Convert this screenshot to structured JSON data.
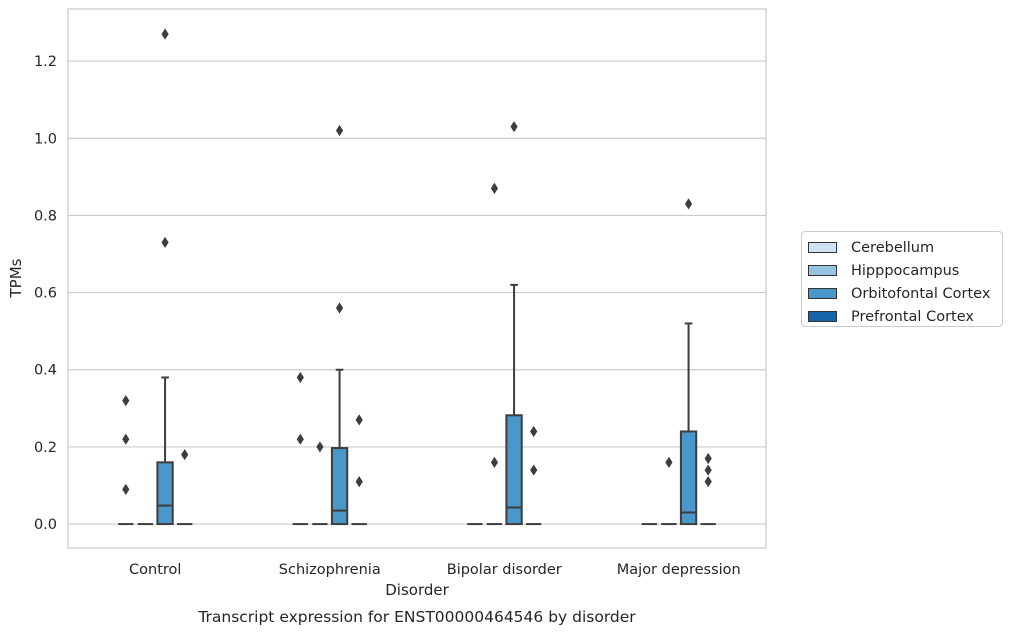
{
  "chart_data": {
    "type": "box",
    "xlabel": "Disorder",
    "ylabel": "TPMs",
    "caption": "Transcript expression for ENST00000464546 by disorder",
    "categories": [
      "Control",
      "Schizophrenia",
      "Bipolar disorder",
      "Major depression"
    ],
    "yticks": [
      "0.0",
      "0.2",
      "0.4",
      "0.6",
      "0.8",
      "1.0",
      "1.2"
    ],
    "ylim": [
      -0.062,
      1.335
    ],
    "grid": true,
    "legend_position": "right",
    "series": [
      {
        "name": "Cerebellum",
        "color": "#d0e1f2",
        "boxes": [
          {
            "q1": 0,
            "median": 0,
            "q3": 0,
            "whislo": 0,
            "whishi": 0,
            "fliers": [
              0.09,
              0.22,
              0.32
            ]
          },
          {
            "q1": 0,
            "median": 0,
            "q3": 0,
            "whislo": 0,
            "whishi": 0,
            "fliers": [
              0.22,
              0.38
            ]
          },
          {
            "q1": 0,
            "median": 0,
            "q3": 0,
            "whislo": 0,
            "whishi": 0,
            "fliers": []
          },
          {
            "q1": 0,
            "median": 0,
            "q3": 0,
            "whislo": 0,
            "whishi": 0,
            "fliers": []
          }
        ]
      },
      {
        "name": "Hipppocampus",
        "color": "#94c4df",
        "boxes": [
          {
            "q1": 0,
            "median": 0,
            "q3": 0,
            "whislo": 0,
            "whishi": 0,
            "fliers": []
          },
          {
            "q1": 0,
            "median": 0,
            "q3": 0,
            "whislo": 0,
            "whishi": 0,
            "fliers": [
              0.2
            ]
          },
          {
            "q1": 0,
            "median": 0,
            "q3": 0,
            "whislo": 0,
            "whishi": 0,
            "fliers": [
              0.16,
              0.87
            ]
          },
          {
            "q1": 0,
            "median": 0,
            "q3": 0,
            "whislo": 0,
            "whishi": 0,
            "fliers": [
              0.16
            ]
          }
        ]
      },
      {
        "name": "Orbitofontal Cortex",
        "color": "#4a98c9",
        "boxes": [
          {
            "q1": 0,
            "median": 0.048,
            "q3": 0.16,
            "whislo": 0,
            "whishi": 0.38,
            "fliers": [
              0.73,
              1.27
            ]
          },
          {
            "q1": 0,
            "median": 0.035,
            "q3": 0.197,
            "whislo": 0,
            "whishi": 0.4,
            "fliers": [
              0.56,
              1.02
            ]
          },
          {
            "q1": 0,
            "median": 0.043,
            "q3": 0.282,
            "whislo": 0,
            "whishi": 0.62,
            "fliers": [
              1.03
            ]
          },
          {
            "q1": 0,
            "median": 0.03,
            "q3": 0.24,
            "whislo": 0,
            "whishi": 0.52,
            "fliers": [
              0.83
            ]
          }
        ]
      },
      {
        "name": "Prefrontal Cortex",
        "color": "#1764ab",
        "boxes": [
          {
            "q1": 0,
            "median": 0,
            "q3": 0,
            "whislo": 0,
            "whishi": 0,
            "fliers": [
              0.18
            ]
          },
          {
            "q1": 0,
            "median": 0,
            "q3": 0,
            "whislo": 0,
            "whishi": 0,
            "fliers": [
              0.11,
              0.27
            ]
          },
          {
            "q1": 0,
            "median": 0,
            "q3": 0,
            "whislo": 0,
            "whishi": 0,
            "fliers": [
              0.14,
              0.24
            ]
          },
          {
            "q1": 0,
            "median": 0,
            "q3": 0,
            "whislo": 0,
            "whishi": 0,
            "fliers": [
              0.11,
              0.14,
              0.17
            ]
          }
        ]
      }
    ]
  }
}
